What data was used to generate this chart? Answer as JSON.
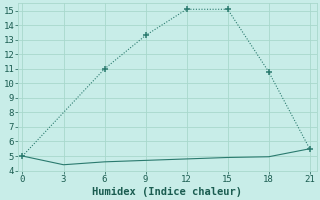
{
  "line1_x": [
    0,
    6,
    9,
    12,
    15,
    18,
    21
  ],
  "line1_y": [
    5.0,
    11.0,
    13.3,
    15.1,
    15.1,
    10.8,
    5.5
  ],
  "line2_x": [
    0,
    3,
    6,
    9,
    12,
    15,
    18,
    21
  ],
  "line2_y": [
    5.0,
    4.4,
    4.6,
    4.7,
    4.8,
    4.9,
    4.95,
    5.5
  ],
  "line_color": "#2a7a6e",
  "bg_color": "#c8ede8",
  "grid_color": "#a8d8cc",
  "xlabel": "Humidex (Indice chaleur)",
  "xlim": [
    -0.3,
    21.5
  ],
  "ylim": [
    4,
    15.5
  ],
  "xticks": [
    0,
    3,
    6,
    9,
    12,
    15,
    18,
    21
  ],
  "yticks": [
    4,
    5,
    6,
    7,
    8,
    9,
    10,
    11,
    12,
    13,
    14,
    15
  ],
  "font_color": "#1a5c50",
  "font_family": "monospace",
  "tick_fontsize": 6.5,
  "xlabel_fontsize": 7.5
}
